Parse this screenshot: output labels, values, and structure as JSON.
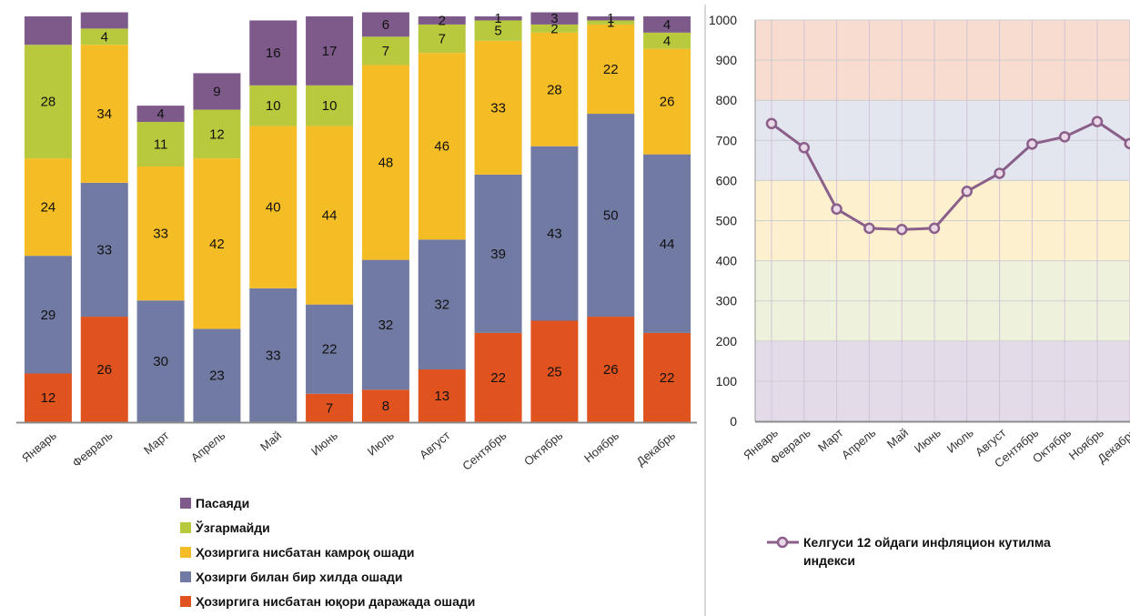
{
  "chart_data": [
    {
      "type": "bar",
      "stacked": true,
      "categories": [
        "Январь",
        "Февраль",
        "Март",
        "Апрель",
        "Май",
        "Июнь",
        "Июль",
        "Август",
        "Сентябрь",
        "Октябрь",
        "Ноябрь",
        "Декабрь"
      ],
      "ylim": [
        0,
        100
      ],
      "series": [
        {
          "name": "Ҳозиргига нисбатан юқори даражада ошади",
          "color": "#e0531f",
          "values": [
            12,
            26,
            0,
            0,
            0,
            7,
            8,
            13,
            22,
            25,
            26,
            22
          ]
        },
        {
          "name": "Ҳозирги билан бир хилда ошади",
          "color": "#717aa3",
          "values": [
            29,
            33,
            30,
            23,
            33,
            22,
            32,
            32,
            39,
            43,
            50,
            44
          ]
        },
        {
          "name": "Ҳозиргига нисбатан камроқ ошади",
          "color": "#f5bd25",
          "values": [
            24,
            34,
            33,
            42,
            40,
            44,
            48,
            46,
            33,
            28,
            22,
            26
          ]
        },
        {
          "name": "Ўзгармайди",
          "color": "#b9c93d",
          "values": [
            28,
            4,
            11,
            12,
            10,
            10,
            7,
            7,
            5,
            2,
            1,
            4
          ]
        },
        {
          "name": "Пасаяди",
          "color": "#7d5a8a",
          "values": [
            7,
            4,
            4,
            9,
            16,
            17,
            6,
            2,
            1,
            3,
            1,
            4
          ]
        }
      ],
      "label_values": [
        [
          12,
          26,
          null,
          null,
          null,
          7,
          8,
          13,
          22,
          25,
          26,
          22
        ],
        [
          29,
          33,
          30,
          23,
          33,
          22,
          32,
          32,
          39,
          43,
          50,
          44
        ],
        [
          24,
          34,
          33,
          42,
          40,
          44,
          48,
          46,
          33,
          28,
          22,
          26
        ],
        [
          28,
          4,
          11,
          12,
          10,
          10,
          7,
          7,
          5,
          2,
          1,
          4
        ],
        [
          null,
          null,
          4,
          9,
          16,
          17,
          6,
          2,
          1,
          3,
          1,
          4
        ]
      ],
      "legend_order": [
        "Пасаяди",
        "Ўзгармайди",
        "Ҳозиргига нисбатан камроқ ошади",
        "Ҳозирги билан бир хилда ошади",
        "Ҳозиргига нисбатан юқори даражада ошади"
      ],
      "legend_position": "bottom"
    },
    {
      "type": "line",
      "categories": [
        "Январь",
        "Февраль",
        "Март",
        "Апрель",
        "Май",
        "Июнь",
        "Июль",
        "Август",
        "Сентябрь",
        "Октябрь",
        "Ноябрь",
        "Декабрь"
      ],
      "ylim": [
        0,
        1000
      ],
      "yticks": [
        0,
        100,
        200,
        300,
        400,
        500,
        600,
        700,
        800,
        900,
        1000
      ],
      "bands": [
        {
          "from": 0,
          "to": 200,
          "color": "#e3dce8"
        },
        {
          "from": 200,
          "to": 400,
          "color": "#eef2dc"
        },
        {
          "from": 400,
          "to": 600,
          "color": "#fdf0cf"
        },
        {
          "from": 600,
          "to": 800,
          "color": "#e3e5ef"
        },
        {
          "from": 800,
          "to": 1000,
          "color": "#f7dccf"
        }
      ],
      "grid": true,
      "series": [
        {
          "name": "Келгуси 12 ойдаги инфляцион кутилма индекси",
          "color": "#8a5f8a",
          "values": [
            742,
            682,
            529,
            481,
            478,
            481,
            573,
            618,
            691,
            709,
            747,
            692
          ]
        }
      ],
      "legend_position": "bottom"
    }
  ]
}
